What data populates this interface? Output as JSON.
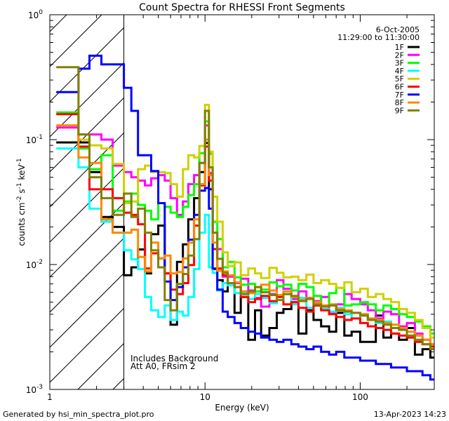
{
  "chart_data": {
    "type": "line",
    "title": "Count Spectra for RHESSI Front Segments",
    "xlabel": "Energy (keV)",
    "ylabel_parts": {
      "base": "counts cm",
      "exp1": "-2",
      "mid": " s",
      "exp2": "-1",
      "tail": " keV",
      "exp3": "-1"
    },
    "xscale": "log",
    "yscale": "log",
    "xlim": [
      1,
      300
    ],
    "ylim": [
      0.001,
      1
    ],
    "x_ticks": [
      {
        "value": 1,
        "label": "1"
      },
      {
        "value": 10,
        "label": "10"
      },
      {
        "value": 100,
        "label": "100"
      }
    ],
    "y_ticks": [
      {
        "value": 1,
        "base": "10",
        "exp": "0"
      },
      {
        "value": 0.1,
        "base": "10",
        "exp": "-1"
      },
      {
        "value": 0.01,
        "base": "10",
        "exp": "-2"
      },
      {
        "value": 0.001,
        "base": "10",
        "exp": "-3"
      }
    ],
    "hatched_region_upper_kev": 3,
    "date": "6-Oct-2005",
    "time_range": "11:29:00 to 11:30:00",
    "annotations": [
      "Includes Background",
      "Att A0, FRsim 2"
    ],
    "legend_position": "top-right",
    "energy_edges": [
      1.1,
      1.32,
      1.53,
      1.8,
      2.15,
      2.54,
      3.0,
      3.35,
      3.7,
      4.1,
      4.5,
      5.0,
      5.5,
      6.0,
      6.6,
      7.2,
      7.8,
      8.5,
      9.2,
      10.0,
      10.6,
      11.2,
      12.0,
      13.0,
      14.0,
      15.5,
      17.0,
      19.0,
      21.0,
      23.0,
      26.0,
      29.0,
      32.0,
      36.0,
      40.0,
      45.0,
      50.0,
      56.0,
      63.0,
      70.0,
      79.0,
      88.0,
      100.0,
      112.0,
      126.0,
      141.0,
      158.0,
      178.0,
      200.0,
      225.0,
      252.0,
      283.0,
      300.0
    ],
    "series": [
      {
        "name": "1F",
        "color": "#000000",
        "values": [
          0.095,
          0.095,
          0.095,
          0.055,
          0.024,
          0.02,
          0.0082,
          0.0095,
          0.0132,
          0.0085,
          0.0175,
          0.0205,
          0.0085,
          0.0033,
          0.0105,
          0.0145,
          0.023,
          0.034,
          0.055,
          0.094,
          0.04,
          0.0092,
          0.0075,
          0.0061,
          0.0081,
          0.0041,
          0.0055,
          0.0025,
          0.0043,
          0.0027,
          0.0031,
          0.0041,
          0.0044,
          0.005,
          0.0028,
          0.0043,
          0.0036,
          0.0032,
          0.0029,
          0.0041,
          0.0027,
          0.0029,
          0.0024,
          0.0024,
          0.0039,
          0.0026,
          0.0028,
          0.0025,
          0.0031,
          0.0019,
          0.0021,
          0.0018
        ]
      },
      {
        "name": "2F",
        "color": "#ff00ff",
        "values": [
          0.125,
          0.125,
          0.11,
          0.11,
          0.1,
          0.062,
          0.055,
          0.05,
          0.047,
          0.043,
          0.049,
          0.052,
          0.047,
          0.034,
          0.025,
          0.032,
          0.044,
          0.052,
          0.065,
          0.13,
          0.054,
          0.018,
          0.0133,
          0.008,
          0.008,
          0.0071,
          0.0077,
          0.0062,
          0.0054,
          0.0046,
          0.0058,
          0.0075,
          0.0064,
          0.0053,
          0.0061,
          0.0054,
          0.0051,
          0.0055,
          0.0041,
          0.0048,
          0.0058,
          0.0053,
          0.0048,
          0.0043,
          0.0037,
          0.0042,
          0.004,
          0.0032,
          0.0034,
          0.0028,
          0.0025,
          0.0023
        ]
      },
      {
        "name": "3F",
        "color": "#00ff00",
        "values": [
          0.165,
          0.165,
          0.085,
          0.058,
          0.075,
          0.027,
          0.032,
          0.037,
          0.03,
          0.027,
          0.023,
          0.031,
          0.029,
          0.026,
          0.024,
          0.029,
          0.036,
          0.044,
          0.078,
          0.14,
          0.077,
          0.022,
          0.016,
          0.0095,
          0.0105,
          0.0079,
          0.0069,
          0.007,
          0.0061,
          0.0063,
          0.0072,
          0.0067,
          0.0069,
          0.0062,
          0.007,
          0.0066,
          0.0056,
          0.0047,
          0.0059,
          0.0065,
          0.0047,
          0.0048,
          0.005,
          0.0048,
          0.0043,
          0.0047,
          0.0044,
          0.004,
          0.0038,
          0.0035,
          0.0032,
          0.0028
        ]
      },
      {
        "name": "4F",
        "color": "#00ffff",
        "values": [
          0.085,
          0.085,
          0.06,
          0.028,
          0.022,
          0.018,
          0.013,
          0.011,
          0.0092,
          0.0055,
          0.0043,
          0.0038,
          0.0047,
          0.0036,
          0.0042,
          0.0039,
          0.0055,
          0.0092,
          0.018,
          0.025,
          0.0095,
          0.0086,
          0.0062,
          0.0071,
          0.0068,
          0.0059,
          0.006,
          0.0053,
          0.0058,
          0.0054,
          0.0049,
          0.0056,
          0.0058,
          0.0048,
          0.0054,
          0.0045,
          0.0047,
          0.0044,
          0.0042,
          0.0045,
          0.004,
          0.0037,
          0.004,
          0.0037,
          0.0034,
          0.0035,
          0.0033,
          0.003,
          0.0029,
          0.0027,
          0.0025,
          0.0023
        ]
      },
      {
        "name": "5F",
        "color": "#d0d000",
        "values": [
          0.13,
          0.13,
          0.1,
          0.09,
          0.085,
          0.064,
          0.031,
          0.032,
          0.058,
          0.062,
          0.055,
          0.055,
          0.054,
          0.044,
          0.035,
          0.058,
          0.075,
          0.072,
          0.089,
          0.19,
          0.08,
          0.035,
          0.022,
          0.0125,
          0.0097,
          0.0104,
          0.0082,
          0.0093,
          0.0085,
          0.0078,
          0.0094,
          0.0086,
          0.0079,
          0.008,
          0.0075,
          0.0083,
          0.0071,
          0.0075,
          0.007,
          0.0065,
          0.0072,
          0.006,
          0.0064,
          0.0055,
          0.0058,
          0.0053,
          0.005,
          0.0044,
          0.0041,
          0.0036,
          0.0031,
          0.0026
        ]
      },
      {
        "name": "6F",
        "color": "#ff0000",
        "values": [
          0.16,
          0.16,
          0.088,
          0.04,
          0.04,
          0.034,
          0.026,
          0.025,
          0.021,
          0.0093,
          0.0123,
          0.0112,
          0.0085,
          0.0063,
          0.0058,
          0.0071,
          0.0099,
          0.0205,
          0.043,
          0.088,
          0.047,
          0.0133,
          0.0093,
          0.0082,
          0.0071,
          0.0066,
          0.0055,
          0.005,
          0.0053,
          0.0056,
          0.0051,
          0.0055,
          0.0048,
          0.005,
          0.0045,
          0.0042,
          0.0047,
          0.0043,
          0.004,
          0.0038,
          0.0036,
          0.0037,
          0.0034,
          0.0032,
          0.0031,
          0.003,
          0.0028,
          0.0027,
          0.0026,
          0.0024,
          0.0023,
          0.0022
        ]
      },
      {
        "name": "7F",
        "color": "#0000ff",
        "values": [
          0.24,
          0.24,
          0.37,
          0.47,
          0.4,
          0.4,
          0.26,
          0.17,
          0.075,
          0.075,
          0.056,
          0.031,
          0.0073,
          0.0052,
          0.0066,
          0.0095,
          0.0158,
          0.025,
          0.039,
          0.041,
          0.028,
          0.0093,
          0.0063,
          0.0042,
          0.0038,
          0.0034,
          0.0031,
          0.0029,
          0.0028,
          0.0026,
          0.0025,
          0.0024,
          0.0025,
          0.0023,
          0.0022,
          0.0021,
          0.0022,
          0.002,
          0.0019,
          0.002,
          0.0018,
          0.0018,
          0.0017,
          0.0017,
          0.0016,
          0.0016,
          0.0015,
          0.0015,
          0.0014,
          0.0014,
          0.0013,
          0.0012
        ]
      },
      {
        "name": "8F",
        "color": "#ff8800",
        "values": [
          0.13,
          0.13,
          0.072,
          0.065,
          0.023,
          0.018,
          0.018,
          0.019,
          0.0115,
          0.0088,
          0.015,
          0.0112,
          0.0118,
          0.0085,
          0.0087,
          0.0112,
          0.015,
          0.023,
          0.044,
          0.1,
          0.052,
          0.015,
          0.0089,
          0.0088,
          0.0082,
          0.0072,
          0.0061,
          0.0059,
          0.0066,
          0.0069,
          0.0062,
          0.0057,
          0.0061,
          0.0055,
          0.0052,
          0.0054,
          0.005,
          0.0047,
          0.0048,
          0.0044,
          0.0043,
          0.0041,
          0.004,
          0.0037,
          0.0036,
          0.0034,
          0.0033,
          0.0031,
          0.0029,
          0.0027,
          0.0025,
          0.0023
        ]
      },
      {
        "name": "9F",
        "color": "#808000",
        "values": [
          0.38,
          0.38,
          0.11,
          0.05,
          0.034,
          0.025,
          0.037,
          0.024,
          0.028,
          0.018,
          0.013,
          0.0095,
          0.0052,
          0.0043,
          0.007,
          0.0084,
          0.0118,
          0.016,
          0.065,
          0.17,
          0.06,
          0.018,
          0.0111,
          0.0086,
          0.0071,
          0.0066,
          0.0058,
          0.0061,
          0.0066,
          0.006,
          0.0057,
          0.0052,
          0.0058,
          0.0056,
          0.0051,
          0.0053,
          0.0048,
          0.0046,
          0.0047,
          0.0043,
          0.0042,
          0.0041,
          0.0039,
          0.0036,
          0.0035,
          0.0033,
          0.0031,
          0.003,
          0.0027,
          0.0025,
          0.0023,
          0.0021
        ]
      }
    ]
  },
  "footer": {
    "generator": "Generated by hsi_min_spectra_plot.pro",
    "timestamp": "13-Apr-2023 14:23"
  }
}
